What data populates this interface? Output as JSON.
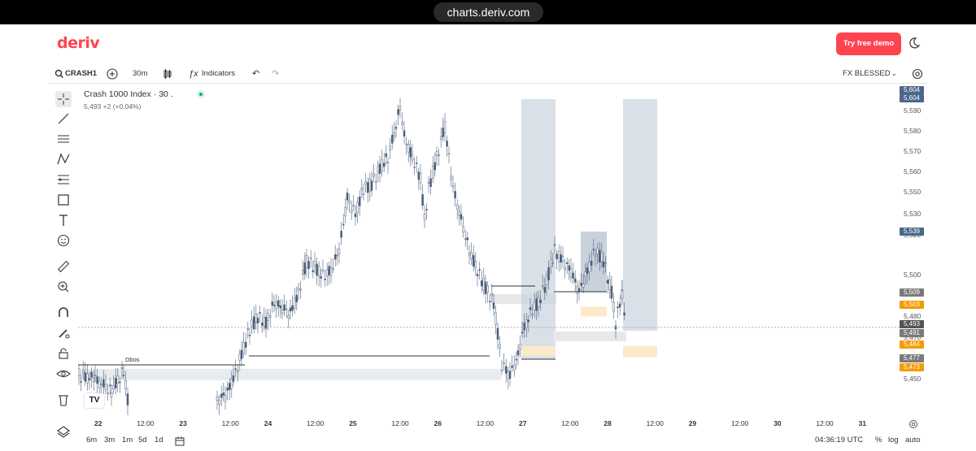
{
  "browser": {
    "url": "charts.deriv.com"
  },
  "header": {
    "logo": "deriv",
    "demo_button": "Try free demo"
  },
  "toolbar": {
    "symbol": "CRASH1",
    "interval": "30m",
    "indicators": "Indicators",
    "account": "FX BLESSED"
  },
  "symbol_info": {
    "title": "Crash 1000 Index · 30 .",
    "price": "5,493",
    "change": "+2 (+0.04%)"
  },
  "annotation": {
    "label": "Dbos"
  },
  "price_axis": {
    "labels": [
      "5,600",
      "5,590",
      "5,580",
      "5,570",
      "5,560",
      "5,550",
      "5,530",
      "5,520",
      "5,500",
      "5,480",
      "5,470",
      "5,460",
      "5,450"
    ],
    "tags": [
      {
        "text": "5,604",
        "color": "#4a6689"
      },
      {
        "text": "5,604",
        "color": "#4a6689"
      },
      {
        "text": "5,539",
        "color": "#4a6689"
      },
      {
        "text": "5,509",
        "color": "#7a7a7a"
      },
      {
        "text": "5,503",
        "color": "#f59b00"
      },
      {
        "text": "5,493",
        "color": "#555555"
      },
      {
        "text": "5,491",
        "color": "#7a7a7a"
      },
      {
        "text": "5,484",
        "color": "#f59b00"
      },
      {
        "text": "5,477",
        "color": "#7a7a7a"
      },
      {
        "text": "5,473",
        "color": "#f59b00"
      }
    ]
  },
  "time_axis": {
    "labels": [
      "22",
      "12:00",
      "23",
      "12:00",
      "24",
      "12:00",
      "25",
      "12:00",
      "26",
      "12:00",
      "27",
      "12:00",
      "28",
      "12:00",
      "29",
      "12:00",
      "30",
      "12:00",
      "31"
    ]
  },
  "bottombar": {
    "periods": [
      "6m",
      "3m",
      "1m",
      "5d",
      "1d"
    ],
    "clock": "04:36:19 UTC",
    "percent": "%",
    "log": "log",
    "auto": "auto"
  },
  "colors": {
    "accent": "#ff444f",
    "candle": "#4a5f7a",
    "zone": "#aab8c8",
    "demand": "#fde9c9"
  }
}
